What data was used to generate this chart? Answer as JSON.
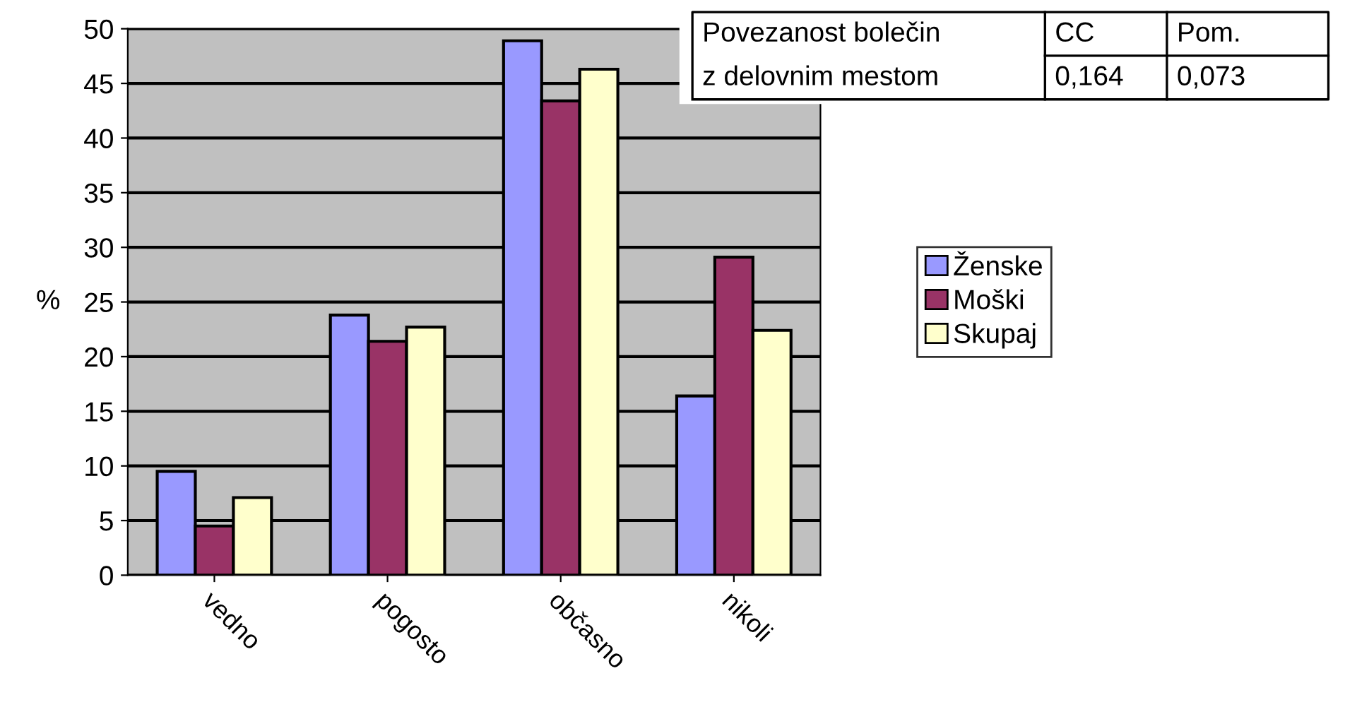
{
  "chart_data": {
    "type": "bar",
    "ylabel": "%",
    "categories": [
      "vedno",
      "pogosto",
      "občasno",
      "nikoli"
    ],
    "series": [
      {
        "name": "Ženske",
        "color": "#9999ff",
        "values": [
          9.5,
          23.8,
          48.9,
          16.4
        ]
      },
      {
        "name": "Moški",
        "color": "#993366",
        "values": [
          4.5,
          21.4,
          43.4,
          29.1
        ]
      },
      {
        "name": "Skupaj",
        "color": "#ffffcc",
        "values": [
          7.1,
          22.7,
          46.3,
          22.4
        ]
      }
    ],
    "ylim": [
      0,
      50
    ],
    "yticks": [
      0,
      5,
      10,
      15,
      20,
      25,
      30,
      35,
      40,
      45,
      50
    ],
    "grid": "y",
    "legend": "right",
    "annotations": [
      "Povezanost bolečin",
      "z delovnim mestom",
      "CC",
      "Pom.",
      "0,164",
      "0,073"
    ]
  }
}
